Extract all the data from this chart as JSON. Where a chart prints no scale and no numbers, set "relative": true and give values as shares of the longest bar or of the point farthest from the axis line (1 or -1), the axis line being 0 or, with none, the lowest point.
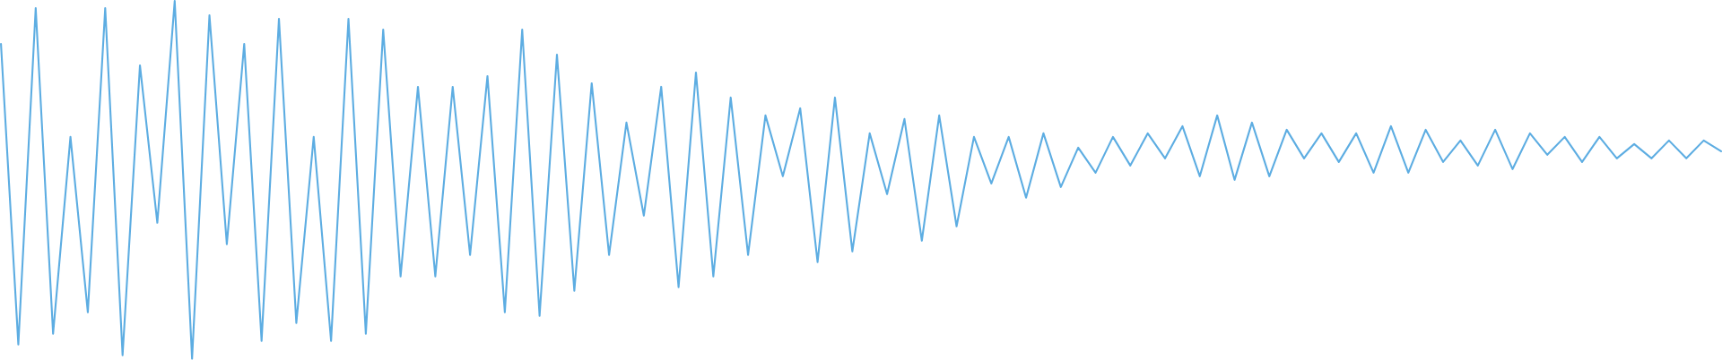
{
  "chart_data": {
    "type": "line",
    "relative": true,
    "categories": [
      null,
      null,
      null,
      null,
      null,
      null,
      null,
      null,
      null,
      null,
      null,
      null,
      null,
      null,
      null,
      null,
      null,
      null,
      null,
      null,
      null,
      null,
      null,
      null,
      null,
      null,
      null,
      null,
      null,
      null,
      null,
      null,
      null,
      null,
      null,
      null,
      null,
      null,
      null,
      null,
      null,
      null,
      null,
      null,
      null,
      null,
      null,
      null,
      null,
      null,
      null,
      null,
      null,
      null,
      null,
      null,
      null,
      null,
      null,
      null,
      null,
      null,
      null,
      null,
      null,
      null,
      null,
      null,
      null,
      null,
      null,
      null,
      null,
      null,
      null,
      null,
      null,
      null,
      null,
      null,
      null,
      null,
      null,
      null,
      null,
      null,
      null,
      null,
      null,
      null,
      null,
      null,
      null,
      null,
      null,
      null,
      null,
      null,
      null,
      null
    ],
    "series": [
      {
        "color": "#5dade2",
        "values": [
          0.88,
          0.04,
          0.98,
          0.07,
          0.62,
          0.13,
          0.98,
          0.01,
          0.82,
          0.38,
          1.0,
          0.0,
          0.96,
          0.32,
          0.88,
          0.05,
          0.95,
          0.1,
          0.62,
          0.05,
          0.95,
          0.07,
          0.92,
          0.23,
          0.76,
          0.23,
          0.76,
          0.29,
          0.79,
          0.13,
          0.92,
          0.12,
          0.85,
          0.19,
          0.77,
          0.29,
          0.66,
          0.4,
          0.76,
          0.2,
          0.8,
          0.23,
          0.73,
          0.29,
          0.68,
          0.51,
          0.7,
          0.27,
          0.73,
          0.3,
          0.63,
          0.46,
          0.67,
          0.33,
          0.68,
          0.37,
          0.62,
          0.49,
          0.62,
          0.45,
          0.63,
          0.48,
          0.59,
          0.52,
          0.62,
          0.54,
          0.63,
          0.56,
          0.65,
          0.51,
          0.68,
          0.5,
          0.66,
          0.51,
          0.64,
          0.56,
          0.63,
          0.55,
          0.63,
          0.52,
          0.65,
          0.52,
          0.64,
          0.55,
          0.61,
          0.54,
          0.64,
          0.53,
          0.63,
          0.57,
          0.62,
          0.55,
          0.62,
          0.56,
          0.6,
          0.56,
          0.61,
          0.56,
          0.61,
          0.58
        ]
      }
    ]
  }
}
